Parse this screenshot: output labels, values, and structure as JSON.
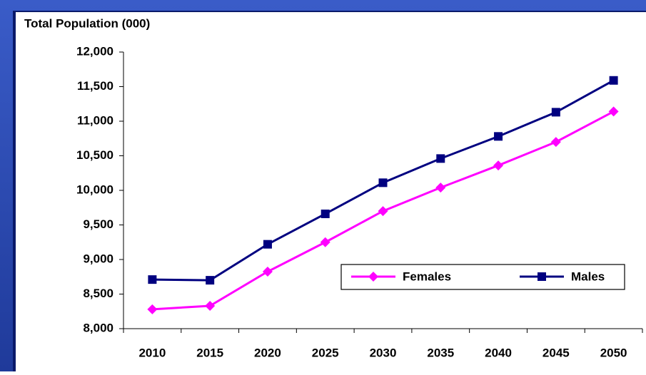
{
  "chart_data": {
    "type": "line",
    "y_label": "Total Population (000)",
    "categories": [
      "2010",
      "2015",
      "2020",
      "2025",
      "2030",
      "2035",
      "2040",
      "2045",
      "2050"
    ],
    "series": [
      {
        "name": "Females",
        "color": "#ff00ff",
        "marker": "diamond",
        "values": [
          8280,
          8330,
          8825,
          9250,
          9700,
          10040,
          10360,
          10700,
          11140
        ]
      },
      {
        "name": "Males",
        "color": "#000080",
        "marker": "square",
        "values": [
          8710,
          8700,
          9220,
          9660,
          10110,
          10460,
          10780,
          11130,
          11590
        ]
      }
    ],
    "ylim": [
      8000,
      12000
    ],
    "yticks": [
      {
        "value": 8000,
        "label": "8,000"
      },
      {
        "value": 8500,
        "label": "8,500"
      },
      {
        "value": 9000,
        "label": "9,000"
      },
      {
        "value": 9500,
        "label": "9,500"
      },
      {
        "value": 10000,
        "label": "10,000"
      },
      {
        "value": 10500,
        "label": "10,500"
      },
      {
        "value": 11000,
        "label": "11,000"
      },
      {
        "value": 11500,
        "label": "11,500"
      },
      {
        "value": 12000,
        "label": "12,000"
      }
    ],
    "grid": false,
    "legend": "lower right"
  }
}
